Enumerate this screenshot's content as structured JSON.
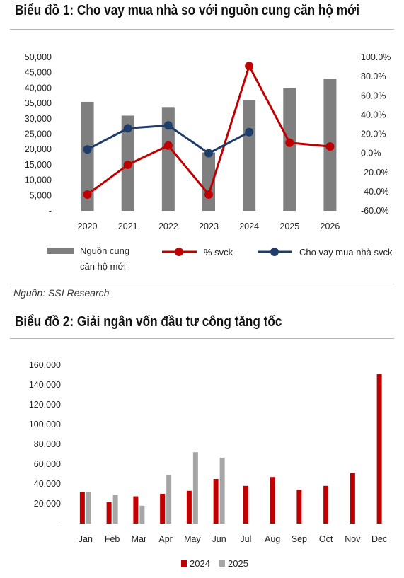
{
  "chart1": {
    "title": "Biểu đồ 1: Cho vay mua nhà so với nguồn cung căn hộ mới",
    "source": "Nguồn: SSI Research",
    "legend": {
      "bar_line1": "Nguồn cung",
      "bar_line2": "căn hộ mới",
      "pct": "% svck",
      "loan": "Cho vay mua nhà svck"
    },
    "colors": {
      "bar": "#7f7f7f",
      "pct": "#c00000",
      "loan": "#1f3d6b"
    },
    "left_ticks": [
      "-",
      "5,000",
      "10,000",
      "15,000",
      "20,000",
      "25,000",
      "30,000",
      "35,000",
      "40,000",
      "45,000",
      "50,000"
    ],
    "right_ticks": [
      "-60.0%",
      "-40.0%",
      "-20.0%",
      "0.0%",
      "20.0%",
      "40.0%",
      "60.0%",
      "80.0%",
      "100.0%"
    ]
  },
  "chart2": {
    "title": "Biểu đồ 2: Giải ngân vốn đầu tư công tăng tốc",
    "left_ticks": [
      "-",
      "20,000",
      "40,000",
      "60,000",
      "80,000",
      "100,000",
      "120,000",
      "140,000",
      "160,000"
    ],
    "colors": {
      "s2024": "#c00000",
      "s2025": "#a6a6a6"
    }
  },
  "chart_data": [
    {
      "type": "bar",
      "categories": [
        "2020",
        "2021",
        "2022",
        "2023",
        "2024",
        "2025",
        "2026"
      ],
      "ylim": [
        0,
        50000
      ],
      "y2lim": [
        -60,
        100
      ],
      "series": [
        {
          "name": "Nguồn cung căn hộ mới",
          "axis": "left",
          "type": "bar",
          "values": [
            35500,
            31000,
            33800,
            19000,
            36000,
            40000,
            43000
          ]
        },
        {
          "name": "% svck",
          "axis": "right",
          "type": "line",
          "values": [
            -43,
            -12,
            8,
            -43,
            91,
            11,
            7
          ]
        },
        {
          "name": "Cho vay mua nhà svck",
          "axis": "right",
          "type": "line",
          "values": [
            4,
            26,
            29,
            0,
            22,
            null,
            null
          ]
        }
      ],
      "legend_position": "bottom",
      "grid": false
    },
    {
      "type": "bar",
      "categories": [
        "Jan",
        "Feb",
        "Mar",
        "Apr",
        "May",
        "Jun",
        "Jul",
        "Aug",
        "Sep",
        "Oct",
        "Nov",
        "Dec"
      ],
      "ylim": [
        0,
        160000
      ],
      "series": [
        {
          "name": "2024",
          "values": [
            31500,
            21500,
            27500,
            30000,
            33000,
            45000,
            38000,
            47000,
            34000,
            38000,
            51000,
            151000
          ]
        },
        {
          "name": "2025",
          "values": [
            31500,
            29000,
            18000,
            49000,
            72000,
            66500,
            null,
            null,
            null,
            null,
            null,
            null
          ]
        }
      ],
      "legend_position": "bottom",
      "grid": false
    }
  ]
}
